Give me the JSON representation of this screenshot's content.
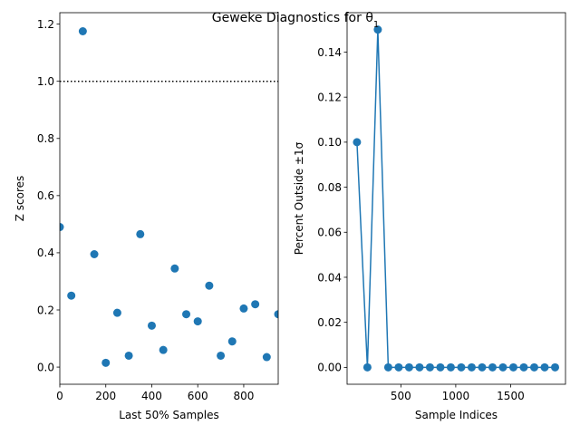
{
  "title": "Geweke Diagnostics for θ",
  "title_subscript": "1",
  "colors": {
    "point": "#1f77b4",
    "line": "#1f77b4",
    "ref": "#000000"
  },
  "chart_data": [
    {
      "type": "scatter",
      "xlabel": "Last 50% Samples",
      "ylabel": "Z scores",
      "xlim": [
        0,
        950
      ],
      "ylim": [
        -0.06,
        1.24
      ],
      "xticks": [
        0,
        200,
        400,
        600,
        800
      ],
      "yticks": [
        0.0,
        0.2,
        0.4,
        0.6,
        0.8,
        1.0,
        1.2
      ],
      "hline": {
        "y": 1.0,
        "style": "dotted"
      },
      "x": [
        0,
        50,
        100,
        150,
        200,
        250,
        300,
        350,
        400,
        450,
        500,
        550,
        600,
        650,
        700,
        750,
        800,
        850,
        900,
        950
      ],
      "y": [
        0.49,
        0.25,
        1.175,
        0.395,
        0.015,
        0.19,
        0.04,
        0.465,
        0.145,
        0.06,
        0.345,
        0.185,
        0.16,
        0.285,
        0.04,
        0.09,
        0.205,
        0.22,
        0.035,
        0.185
      ]
    },
    {
      "type": "line",
      "xlabel": "Sample Indices",
      "ylabel": "Percent Outside ±1σ",
      "xlim": [
        10,
        2000
      ],
      "ylim": [
        -0.0075,
        0.1575
      ],
      "xticks": [
        500,
        1000,
        1500
      ],
      "yticks": [
        0.0,
        0.02,
        0.04,
        0.06,
        0.08,
        0.1,
        0.12,
        0.14
      ],
      "x": [
        100,
        195,
        290,
        385,
        480,
        575,
        670,
        765,
        860,
        955,
        1050,
        1145,
        1240,
        1335,
        1430,
        1525,
        1620,
        1715,
        1810,
        1905
      ],
      "y": [
        0.1,
        0.0,
        0.15,
        0.0,
        0.0,
        0.0,
        0.0,
        0.0,
        0.0,
        0.0,
        0.0,
        0.0,
        0.0,
        0.0,
        0.0,
        0.0,
        0.0,
        0.0,
        0.0,
        0.0
      ]
    }
  ]
}
